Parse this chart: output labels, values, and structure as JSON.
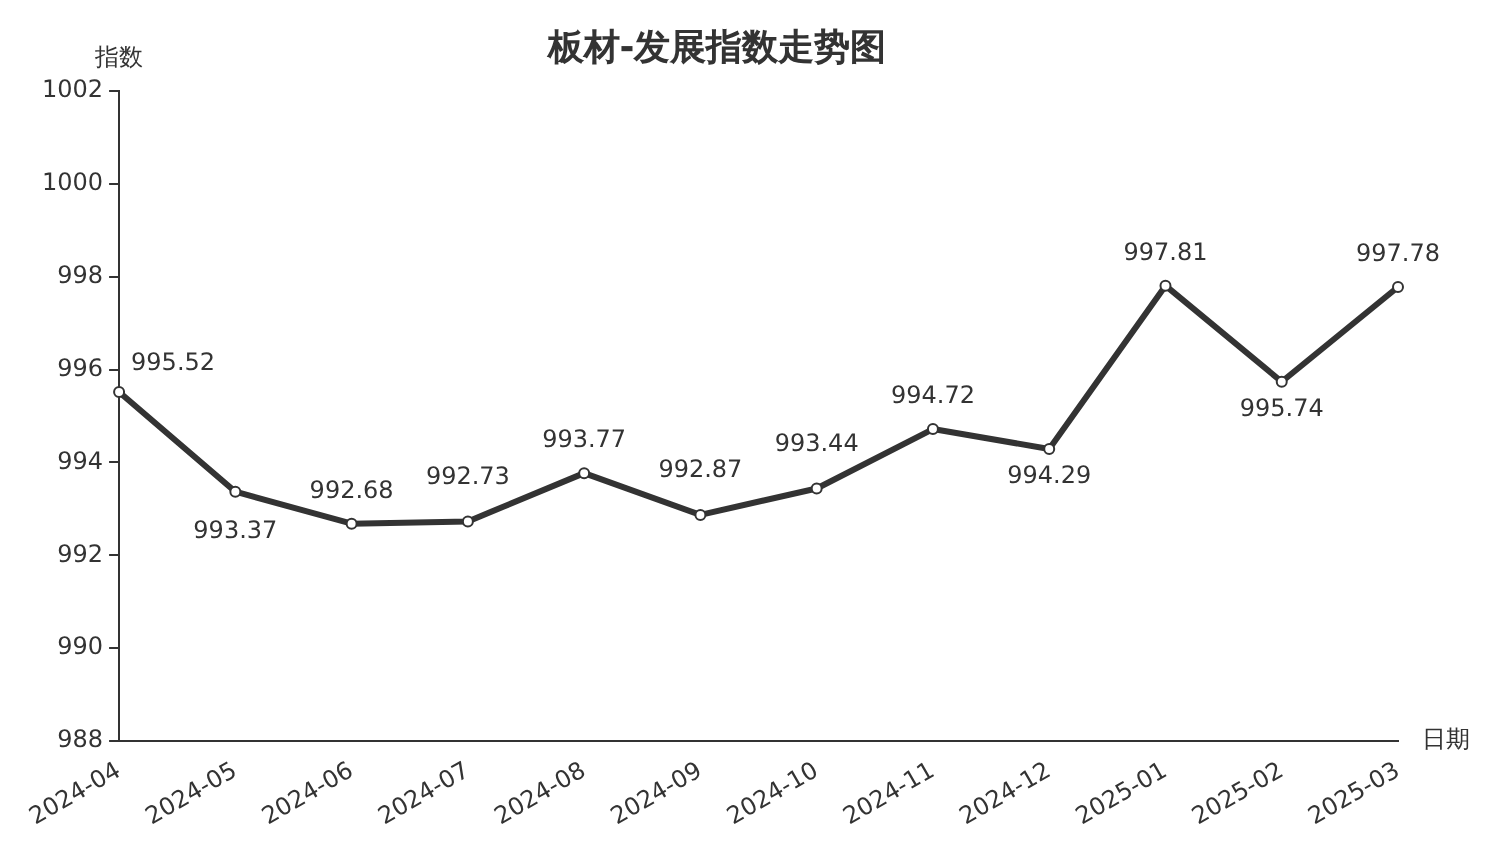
{
  "chart_data": {
    "type": "line",
    "title": "板材-发展指数走势图",
    "xlabel": "日期",
    "ylabel": "指数",
    "categories": [
      "2024-04",
      "2024-05",
      "2024-06",
      "2024-07",
      "2024-08",
      "2024-09",
      "2024-10",
      "2024-11",
      "2024-12",
      "2025-01",
      "2025-02",
      "2025-03"
    ],
    "series": [
      {
        "color": "#333333",
        "values": [
          995.52,
          993.37,
          992.68,
          992.73,
          993.77,
          992.87,
          993.44,
          994.72,
          994.29,
          997.81,
          995.74,
          997.78
        ]
      }
    ],
    "ylim": [
      988,
      1002
    ],
    "yticks": [
      988,
      990,
      992,
      994,
      996,
      998,
      1000,
      1002
    ],
    "grid": false,
    "legend": false,
    "marker": "circle",
    "line_style": "solid",
    "data_labels": true
  }
}
